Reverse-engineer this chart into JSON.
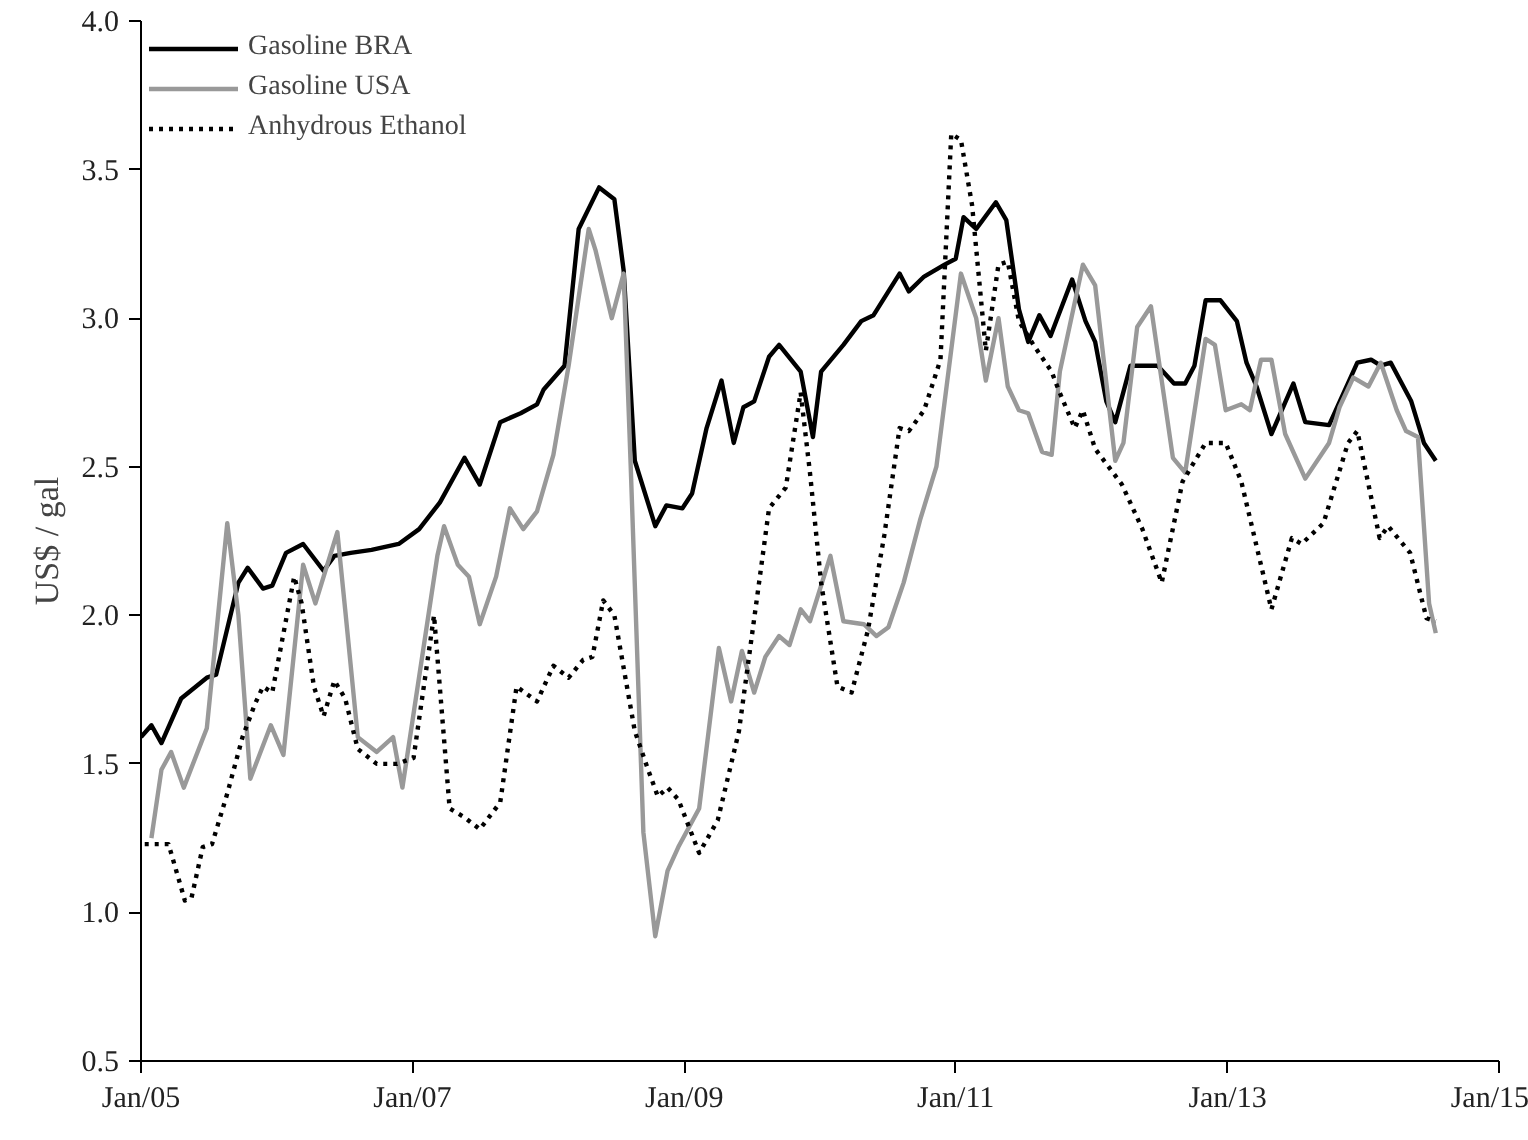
{
  "chart_data": {
    "type": "line",
    "ylabel": "US$ / gal",
    "xlim": [
      "2005-01-01",
      "2015-01-01"
    ],
    "ylim": [
      0.5,
      4.0
    ],
    "xticks": [
      {
        "value": "2005-01-01",
        "label": "Jan/05"
      },
      {
        "value": "2007-01-01",
        "label": "Jan/07"
      },
      {
        "value": "2009-01-01",
        "label": "Jan/09"
      },
      {
        "value": "2011-01-01",
        "label": "Jan/11"
      },
      {
        "value": "2013-01-01",
        "label": "Jan/13"
      },
      {
        "value": "2015-01-01",
        "label": "Jan/15"
      }
    ],
    "yticks": [
      0.5,
      {
        "value": 1,
        "label": "1.0"
      },
      1.5,
      {
        "value": 2,
        "label": "2.0"
      },
      2.5,
      {
        "value": 3,
        "label": "3.0"
      },
      3.5,
      {
        "value": 4,
        "label": "4.0"
      }
    ],
    "grid": false,
    "legend": "top left",
    "marker": "none",
    "series": [
      {
        "name": "Gasoline BRA",
        "color": "#000000",
        "line_style": "solid",
        "x": [
          "2005-01-01",
          "2005-01-29",
          "2005-02-25",
          "2005-04-19",
          "2005-06-27",
          "2005-07-22",
          "2005-09-20",
          "2005-10-15",
          "2005-11-25",
          "2005-12-20",
          "2006-01-26",
          "2006-03-13",
          "2006-05-07",
          "2006-06-05",
          "2006-07-19",
          "2006-09-13",
          "2006-11-25",
          "2007-01-19",
          "2007-03-16",
          "2007-05-21",
          "2007-07-01",
          "2007-08-25",
          "2007-10-19",
          "2007-12-02",
          "2007-12-20",
          "2008-02-14",
          "2008-03-23",
          "2008-05-17",
          "2008-06-27",
          "2008-07-22",
          "2008-08-21",
          "2008-10-15",
          "2008-11-14",
          "2008-12-27",
          "2009-01-22",
          "2009-03-02",
          "2009-04-11",
          "2009-05-14",
          "2009-06-09",
          "2009-07-08",
          "2009-08-17",
          "2009-09-13",
          "2009-11-10",
          "2009-12-13",
          "2010-01-04",
          "2010-03-05",
          "2010-04-22",
          "2010-05-25",
          "2010-08-03",
          "2010-08-28",
          "2010-10-08",
          "2010-12-02",
          "2011-01-01",
          "2011-01-22",
          "2011-02-25",
          "2011-04-19",
          "2011-05-17",
          "2011-06-20",
          "2011-07-15",
          "2011-08-14",
          "2011-09-13",
          "2011-11-10",
          "2011-12-16",
          "2012-01-11",
          "2012-02-10",
          "2012-03-05",
          "2012-04-15",
          "2012-06-27",
          "2012-08-10",
          "2012-09-09",
          "2012-10-04",
          "2012-11-03",
          "2012-12-13",
          "2013-01-26",
          "2013-02-21",
          "2013-03-20",
          "2013-04-29",
          "2013-06-27",
          "2013-07-29",
          "2013-10-01",
          "2013-12-16",
          "2014-01-22",
          "2014-02-17",
          "2014-03-16",
          "2014-05-10",
          "2014-06-13",
          "2014-07-15"
        ],
        "values": [
          1.59,
          1.63,
          1.57,
          1.72,
          1.79,
          1.8,
          2.11,
          2.16,
          2.09,
          2.1,
          2.21,
          2.24,
          2.15,
          2.2,
          2.21,
          2.22,
          2.24,
          2.29,
          2.38,
          2.53,
          2.44,
          2.65,
          2.68,
          2.71,
          2.76,
          2.84,
          3.3,
          3.44,
          3.4,
          3.16,
          2.52,
          2.3,
          2.37,
          2.36,
          2.41,
          2.63,
          2.79,
          2.58,
          2.7,
          2.72,
          2.87,
          2.91,
          2.82,
          2.6,
          2.82,
          2.91,
          2.99,
          3.01,
          3.15,
          3.09,
          3.14,
          3.18,
          3.2,
          3.34,
          3.3,
          3.39,
          3.33,
          3.03,
          2.92,
          3.01,
          2.94,
          3.13,
          2.99,
          2.92,
          2.72,
          2.65,
          2.84,
          2.84,
          2.78,
          2.78,
          2.84,
          3.06,
          3.06,
          2.99,
          2.85,
          2.77,
          2.61,
          2.78,
          2.65,
          2.64,
          2.85,
          2.86,
          2.84,
          2.85,
          2.72,
          2.58,
          2.52
        ]
      },
      {
        "name": "Gasoline USA",
        "color": "#999999",
        "line_style": "solid",
        "x": [
          "2005-01-29",
          "2005-02-25",
          "2005-03-23",
          "2005-04-26",
          "2005-06-27",
          "2005-08-21",
          "2005-09-20",
          "2005-10-22",
          "2005-12-16",
          "2006-01-19",
          "2006-03-13",
          "2006-04-15",
          "2006-06-13",
          "2006-07-04",
          "2006-08-07",
          "2006-09-27",
          "2006-11-10",
          "2006-12-05",
          "2007-03-09",
          "2007-03-27",
          "2007-05-03",
          "2007-06-02",
          "2007-07-01",
          "2007-08-14",
          "2007-09-20",
          "2007-10-26",
          "2007-12-02",
          "2008-01-15",
          "2008-02-25",
          "2008-04-19",
          "2008-05-07",
          "2008-06-20",
          "2008-07-22",
          "2008-08-10",
          "2008-09-13",
          "2008-10-15",
          "2008-11-17",
          "2008-12-16",
          "2009-02-10",
          "2009-04-04",
          "2009-05-07",
          "2009-06-05",
          "2009-07-08",
          "2009-08-07",
          "2009-09-13",
          "2009-10-11",
          "2009-11-10",
          "2009-12-05",
          "2010-01-29",
          "2010-03-05",
          "2010-04-29",
          "2010-06-02",
          "2010-07-04",
          "2010-08-14",
          "2010-09-27",
          "2010-11-10",
          "2011-01-15",
          "2011-02-25",
          "2011-03-23",
          "2011-04-26",
          "2011-05-21",
          "2011-06-20",
          "2011-07-15",
          "2011-08-21",
          "2011-09-16",
          "2011-10-08",
          "2011-12-09",
          "2012-01-11",
          "2012-03-05",
          "2012-03-27",
          "2012-05-03",
          "2012-06-09",
          "2012-08-07",
          "2012-09-09",
          "2012-11-03",
          "2012-11-28",
          "2012-12-27",
          "2013-02-07",
          "2013-03-02",
          "2013-04-01",
          "2013-04-29",
          "2013-06-05",
          "2013-07-29",
          "2013-10-01",
          "2013-10-29",
          "2013-12-05",
          "2014-01-15",
          "2014-02-17",
          "2014-04-01",
          "2014-04-26",
          "2014-05-28",
          "2014-06-27",
          "2014-07-15"
        ],
        "values": [
          1.25,
          1.48,
          1.54,
          1.42,
          1.62,
          2.31,
          2.0,
          1.45,
          1.63,
          1.53,
          2.17,
          2.04,
          2.28,
          2.02,
          1.59,
          1.54,
          1.59,
          1.42,
          2.2,
          2.3,
          2.17,
          2.13,
          1.97,
          2.13,
          2.36,
          2.29,
          2.35,
          2.54,
          2.84,
          3.3,
          3.23,
          3.0,
          3.15,
          2.5,
          1.27,
          0.92,
          1.14,
          1.22,
          1.35,
          1.89,
          1.71,
          1.88,
          1.74,
          1.86,
          1.93,
          1.9,
          2.02,
          1.98,
          2.2,
          1.98,
          1.97,
          1.93,
          1.96,
          2.11,
          2.32,
          2.5,
          3.15,
          3.0,
          2.79,
          3.0,
          2.77,
          2.69,
          2.68,
          2.55,
          2.54,
          2.82,
          3.18,
          3.11,
          2.52,
          2.58,
          2.97,
          3.04,
          2.53,
          2.48,
          2.93,
          2.91,
          2.69,
          2.71,
          2.69,
          2.86,
          2.86,
          2.61,
          2.46,
          2.58,
          2.7,
          2.8,
          2.77,
          2.85,
          2.69,
          2.62,
          2.6,
          2.04,
          1.94
        ]
      },
      {
        "name": "Anhydrous Ethanol",
        "color": "#000000",
        "line_style": "dotted",
        "x": [
          "2005-01-11",
          "2005-03-16",
          "2005-04-29",
          "2005-05-17",
          "2005-06-16",
          "2005-07-11",
          "2005-08-21",
          "2005-10-01",
          "2005-11-03",
          "2005-11-25",
          "2005-12-20",
          "2006-02-17",
          "2006-03-09",
          "2006-04-11",
          "2006-05-07",
          "2006-06-05",
          "2006-07-04",
          "2006-08-07",
          "2006-09-27",
          "2006-11-21",
          "2007-01-04",
          "2007-02-28",
          "2007-04-11",
          "2007-05-21",
          "2007-07-01",
          "2007-08-25",
          "2007-10-08",
          "2007-12-02",
          "2008-01-15",
          "2008-02-25",
          "2008-04-04",
          "2008-04-29",
          "2008-05-28",
          "2008-06-27",
          "2008-08-21",
          "2008-09-23",
          "2008-10-22",
          "2008-11-17",
          "2008-12-16",
          "2009-02-10",
          "2009-04-01",
          "2009-05-28",
          "2009-07-19",
          "2009-08-17",
          "2009-10-01",
          "2009-11-10",
          "2009-12-05",
          "2010-01-04",
          "2010-02-17",
          "2010-03-27",
          "2010-05-10",
          "2010-06-23",
          "2010-08-03",
          "2010-08-28",
          "2010-10-08",
          "2010-11-21",
          "2010-12-20",
          "2011-01-15",
          "2011-02-14",
          "2011-03-23",
          "2011-04-26",
          "2011-05-21",
          "2011-06-20",
          "2011-07-29",
          "2011-09-16",
          "2011-10-04",
          "2011-11-17",
          "2011-12-09",
          "2012-01-11",
          "2012-03-23",
          "2012-05-17",
          "2012-07-08",
          "2012-09-02",
          "2012-11-03",
          "2012-12-27",
          "2013-02-07",
          "2013-03-13",
          "2013-04-29",
          "2013-06-23",
          "2013-07-19",
          "2013-09-16",
          "2013-11-21",
          "2013-12-16",
          "2014-02-14",
          "2014-03-09",
          "2014-05-07",
          "2014-06-20",
          "2014-07-15"
        ],
        "values": [
          1.23,
          1.23,
          1.04,
          1.05,
          1.22,
          1.23,
          1.4,
          1.59,
          1.7,
          1.76,
          1.74,
          2.13,
          2.04,
          1.76,
          1.66,
          1.78,
          1.72,
          1.55,
          1.5,
          1.5,
          1.52,
          2.0,
          1.35,
          1.32,
          1.28,
          1.37,
          1.76,
          1.71,
          1.83,
          1.79,
          1.85,
          1.86,
          2.05,
          2.0,
          1.61,
          1.49,
          1.39,
          1.42,
          1.38,
          1.2,
          1.31,
          1.61,
          2.09,
          2.36,
          2.43,
          2.75,
          2.48,
          2.11,
          1.76,
          1.74,
          1.95,
          2.27,
          2.63,
          2.62,
          2.69,
          2.86,
          3.62,
          3.6,
          3.38,
          2.89,
          3.18,
          3.19,
          2.99,
          2.91,
          2.82,
          2.76,
          2.63,
          2.69,
          2.56,
          2.44,
          2.29,
          2.11,
          2.45,
          2.58,
          2.58,
          2.45,
          2.27,
          2.02,
          2.26,
          2.24,
          2.31,
          2.58,
          2.62,
          2.26,
          2.3,
          2.21,
          1.99,
          1.98
        ]
      }
    ]
  }
}
